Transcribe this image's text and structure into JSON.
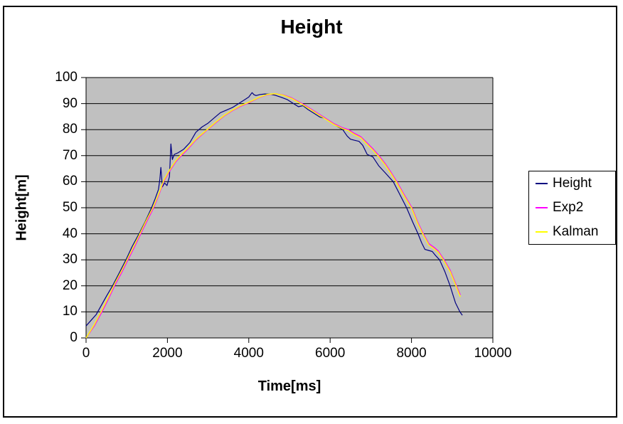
{
  "title": "Height",
  "chart_data": {
    "type": "line",
    "title": "Height",
    "xlabel": "Time[ms]",
    "ylabel": "Height[m]",
    "xlim": [
      0,
      10000
    ],
    "ylim": [
      0,
      100
    ],
    "xticks": [
      0,
      2000,
      4000,
      6000,
      8000,
      10000
    ],
    "yticks": [
      0,
      10,
      20,
      30,
      40,
      50,
      60,
      70,
      80,
      90,
      100
    ],
    "grid": "horizontal",
    "plot_background": "#c0c0c0",
    "gridline_color": "#000000",
    "axis_color": "#000000",
    "legend_position": "right",
    "series": [
      {
        "name": "Height",
        "color": "#000080",
        "width": 1.2,
        "x": [
          0,
          250,
          500,
          650,
          800,
          980,
          1130,
          1300,
          1450,
          1610,
          1700,
          1780,
          1815,
          1840,
          1875,
          1930,
          1990,
          2050,
          2085,
          2120,
          2170,
          2250,
          2400,
          2550,
          2700,
          2850,
          3000,
          3150,
          3300,
          3450,
          3600,
          3750,
          3900,
          4000,
          4080,
          4130,
          4180,
          4280,
          4400,
          4530,
          4650,
          4800,
          4950,
          5100,
          5220,
          5330,
          5450,
          5600,
          5750,
          5900,
          6050,
          6200,
          6310,
          6420,
          6500,
          6600,
          6710,
          6800,
          6910,
          7050,
          7200,
          7350,
          7550,
          7700,
          7880,
          8030,
          8160,
          8250,
          8330,
          8420,
          8510,
          8600,
          8690,
          8820,
          8950,
          9080,
          9190,
          9250
        ],
        "y": [
          4.6,
          9,
          16,
          20,
          24.5,
          30,
          35,
          40,
          44.5,
          50,
          53.5,
          57,
          61,
          65.5,
          58,
          59.5,
          58.5,
          62,
          74.5,
          68.5,
          70.5,
          71,
          72.5,
          75,
          79,
          81,
          82.5,
          84.5,
          86.5,
          87.5,
          88.5,
          90,
          91.5,
          92.5,
          94.2,
          93.4,
          93.1,
          93.5,
          93.7,
          93.6,
          93.2,
          92.4,
          91.5,
          90,
          88.8,
          89.2,
          87.8,
          86.3,
          84.8,
          84.2,
          82.5,
          81,
          80,
          77.5,
          76.3,
          75.9,
          75.5,
          74,
          70.5,
          69.5,
          66,
          63.5,
          60,
          55.5,
          50,
          44.5,
          40,
          36.5,
          34,
          33.6,
          33.2,
          31.5,
          30,
          25.5,
          20,
          13.5,
          10,
          8.7
        ]
      },
      {
        "name": "Exp2",
        "color": "#ff00ff",
        "width": 1.5,
        "x": [
          0,
          200,
          390,
          550,
          700,
          870,
          1030,
          1190,
          1345,
          1500,
          1660,
          1790,
          1905,
          2050,
          2200,
          2340,
          2500,
          2700,
          2990,
          3200,
          3400,
          3600,
          3800,
          4055,
          4250,
          4450,
          4650,
          4850,
          5050,
          5310,
          5500,
          5700,
          5900,
          6100,
          6300,
          6450,
          6600,
          6750,
          6900,
          7060,
          7200,
          7350,
          7500,
          7640,
          7800,
          8010,
          8150,
          8290,
          8425,
          8550,
          8650,
          8800,
          8950,
          9080,
          9200
        ],
        "y": [
          0,
          4.5,
          10,
          15,
          20,
          25,
          30,
          35,
          40,
          45,
          50,
          55,
          60,
          64,
          67.5,
          70,
          72.5,
          76,
          80,
          82.8,
          85.3,
          87.3,
          89,
          90.7,
          92.3,
          93.4,
          93.8,
          93.3,
          92.2,
          90,
          88.2,
          86.2,
          84.2,
          82.2,
          80.7,
          80,
          78.5,
          77.3,
          75,
          72.5,
          70,
          67,
          63.5,
          60,
          55.5,
          50,
          44.5,
          40,
          36.2,
          34.8,
          33.5,
          30,
          26,
          21,
          16.5
        ]
      },
      {
        "name": "Kalman",
        "color": "#ffff00",
        "width": 1.5,
        "x": [
          0,
          200,
          390,
          550,
          700,
          870,
          1030,
          1190,
          1345,
          1500,
          1660,
          1790,
          1905,
          2050,
          2200,
          2340,
          2500,
          2700,
          2990,
          3200,
          3400,
          3600,
          3800,
          4055,
          4250,
          4450,
          4650,
          4850,
          5050,
          5310,
          5500,
          5700,
          5900,
          6100,
          6300,
          6450,
          6600,
          6750,
          6900,
          7060,
          7200,
          7350,
          7500,
          7640,
          7800,
          8010,
          8150,
          8290,
          8425,
          8550,
          8650,
          8800,
          8950,
          9080,
          9200
        ],
        "y": [
          0,
          5,
          10.7,
          15.7,
          20.7,
          25.7,
          30.7,
          35.7,
          40.7,
          45.7,
          50.6,
          55.5,
          60.4,
          64.4,
          67.9,
          70.4,
          72.9,
          76.3,
          80.2,
          83,
          85.5,
          87.5,
          89.2,
          90.9,
          92.4,
          93.5,
          93.8,
          93.2,
          92,
          89.7,
          87.9,
          85.9,
          83.9,
          81.9,
          80.4,
          79.6,
          78.1,
          76.9,
          74.5,
          72,
          69.5,
          66.5,
          63,
          59.5,
          55,
          49.5,
          44,
          39.5,
          35.7,
          34.3,
          33,
          29.5,
          25.5,
          20.5,
          15.8
        ]
      }
    ]
  }
}
